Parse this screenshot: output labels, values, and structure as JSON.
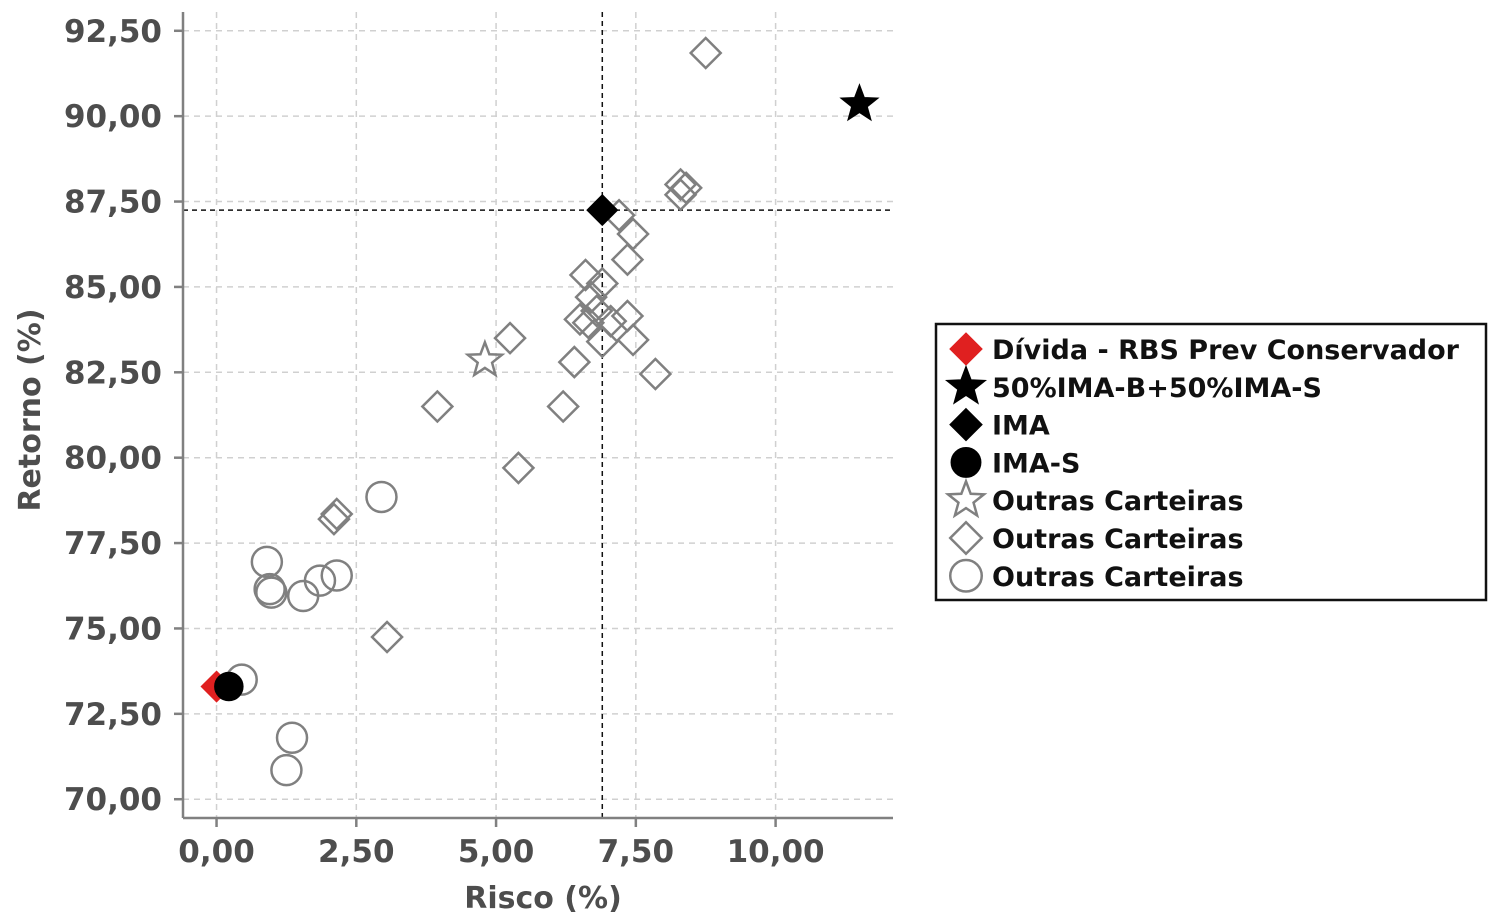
{
  "chart_data": {
    "type": "scatter",
    "xlabel": "Risco (%)",
    "ylabel": "Retorno (%)",
    "xlim": [
      -0.6,
      12.1
    ],
    "ylim": [
      69.45,
      93.05
    ],
    "x_ticks": [
      "0,00",
      "2,50",
      "5,00",
      "7,50",
      "10,00"
    ],
    "x_tick_values": [
      0,
      2.5,
      5,
      7.5,
      10
    ],
    "y_ticks": [
      "70,00",
      "72,50",
      "75,00",
      "77,50",
      "80,00",
      "82,50",
      "85,00",
      "87,50",
      "90,00",
      "92,50"
    ],
    "y_tick_values": [
      70,
      72.5,
      75,
      77.5,
      80,
      82.5,
      85,
      87.5,
      90,
      92.5
    ],
    "grid": true,
    "reference_lines": {
      "x": 6.9,
      "y": 87.25
    },
    "legend_position": "right",
    "series": [
      {
        "name": "Dívida - RBS Prev Conservador",
        "marker": "diamond",
        "filled": true,
        "color": "#e02020",
        "points": [
          [
            0.0,
            73.3
          ]
        ]
      },
      {
        "name": "50%IMA-B+50%IMA-S",
        "marker": "star",
        "filled": true,
        "color": "#000000",
        "points": [
          [
            11.5,
            90.35
          ]
        ]
      },
      {
        "name": "IMA",
        "marker": "diamond",
        "filled": true,
        "color": "#000000",
        "points": [
          [
            6.9,
            87.25
          ]
        ]
      },
      {
        "name": "IMA-S",
        "marker": "circle",
        "filled": true,
        "color": "#000000",
        "points": [
          [
            0.22,
            73.3
          ]
        ]
      },
      {
        "name": "Outras Carteiras",
        "marker": "star",
        "filled": false,
        "color": "#808080",
        "points": [
          [
            4.8,
            82.85
          ]
        ]
      },
      {
        "name": "Outras Carteiras",
        "marker": "diamond",
        "filled": false,
        "color": "#808080",
        "points": [
          [
            8.75,
            91.85
          ],
          [
            8.3,
            88.0
          ],
          [
            8.4,
            87.9
          ],
          [
            8.3,
            87.7
          ],
          [
            7.2,
            87.1
          ],
          [
            7.45,
            86.55
          ],
          [
            7.35,
            85.8
          ],
          [
            6.6,
            85.35
          ],
          [
            6.9,
            85.1
          ],
          [
            6.7,
            84.7
          ],
          [
            6.8,
            84.3
          ],
          [
            6.5,
            84.05
          ],
          [
            6.65,
            83.95
          ],
          [
            7.05,
            84.0
          ],
          [
            7.35,
            84.15
          ],
          [
            6.9,
            83.4
          ],
          [
            7.45,
            83.45
          ],
          [
            5.25,
            83.5
          ],
          [
            6.4,
            82.8
          ],
          [
            7.85,
            82.45
          ],
          [
            3.95,
            81.5
          ],
          [
            6.2,
            81.5
          ],
          [
            5.4,
            79.7
          ],
          [
            2.15,
            78.35
          ],
          [
            2.1,
            78.2
          ],
          [
            3.05,
            74.75
          ]
        ]
      },
      {
        "name": "Outras Carteiras",
        "marker": "circle",
        "filled": false,
        "color": "#808080",
        "points": [
          [
            2.95,
            78.85
          ],
          [
            0.9,
            76.95
          ],
          [
            0.95,
            76.15
          ],
          [
            0.98,
            76.05
          ],
          [
            1.55,
            75.95
          ],
          [
            1.85,
            76.4
          ],
          [
            2.15,
            76.55
          ],
          [
            0.45,
            73.5
          ],
          [
            1.35,
            71.8
          ],
          [
            1.25,
            70.85
          ]
        ]
      }
    ]
  }
}
